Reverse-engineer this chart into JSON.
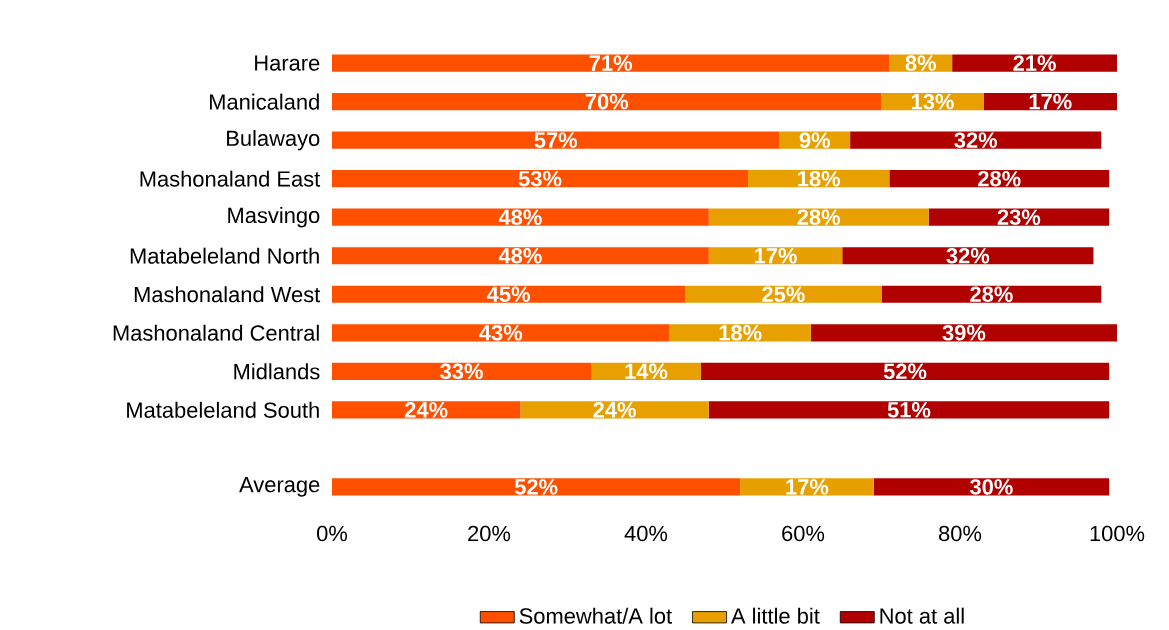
{
  "chart_data": {
    "type": "bar",
    "orientation": "horizontal",
    "stacked": true,
    "categories": [
      "Harare",
      "Manicaland",
      "Bulawayo",
      "Mashonaland East",
      "Masvingo",
      "Matabeleland North",
      "Mashonaland West",
      "Mashonaland Central",
      "Midlands",
      "Matabeleland South",
      null,
      "Average"
    ],
    "series": [
      {
        "name": "Somewhat/A lot",
        "color": "#ff5000",
        "values": [
          71,
          70,
          57,
          53,
          48,
          48,
          45,
          43,
          33,
          24,
          null,
          52
        ],
        "value_labels": [
          "71%",
          "70%",
          "57%",
          "53%",
          "48%",
          "48%",
          "45%",
          "43%",
          "33%",
          "24%",
          null,
          "52%"
        ]
      },
      {
        "name": "A little bit",
        "color": "#e8a000",
        "values": [
          8,
          13,
          9,
          18,
          28,
          17,
          25,
          18,
          14,
          24,
          null,
          17
        ],
        "value_labels": [
          "8%",
          "13%",
          "9%",
          "18%",
          "28%",
          "17%",
          "25%",
          "18%",
          "14%",
          "24%",
          null,
          "17%"
        ]
      },
      {
        "name": "Not at all",
        "color": "#b00000",
        "values": [
          21,
          17,
          32,
          28,
          23,
          32,
          28,
          39,
          52,
          51,
          null,
          30
        ],
        "value_labels": [
          "21%",
          "17%",
          "32%",
          "28%",
          "23%",
          "32%",
          "28%",
          "39%",
          "52%",
          "51%",
          null,
          "30%"
        ]
      }
    ],
    "xlim": [
      0,
      100
    ],
    "xticks": [
      {
        "value": 0,
        "label": "0%"
      },
      {
        "value": 20,
        "label": "20%"
      },
      {
        "value": 40,
        "label": "40%"
      },
      {
        "value": 60,
        "label": "60%"
      },
      {
        "value": 80,
        "label": "80%"
      },
      {
        "value": 100,
        "label": "100%"
      }
    ],
    "legend": "bottom"
  }
}
